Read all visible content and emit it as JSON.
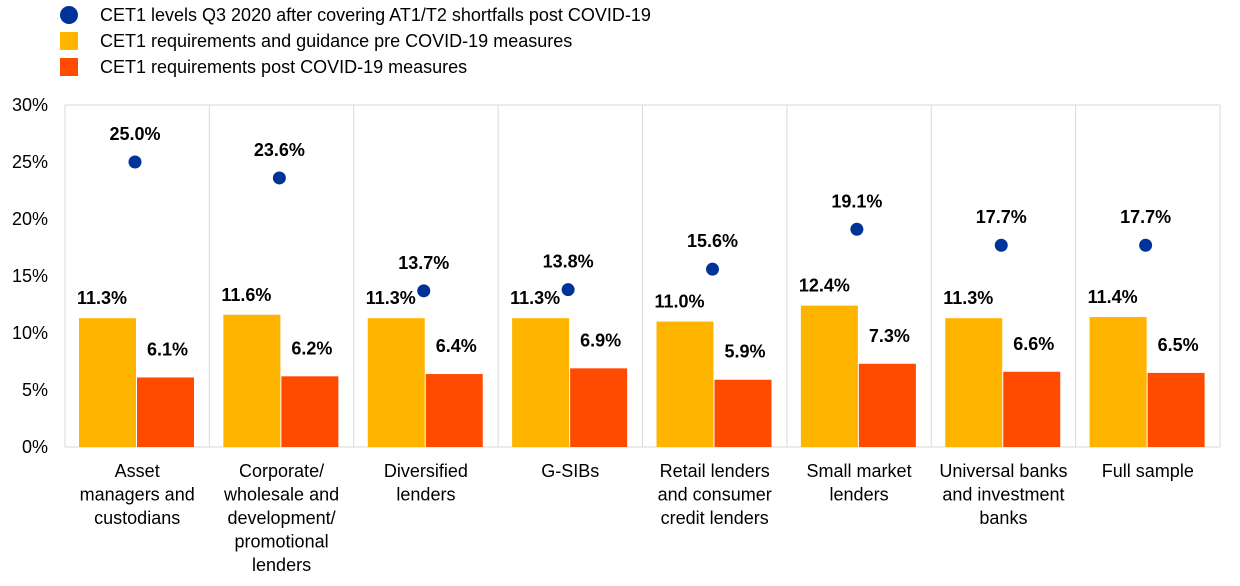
{
  "chart_data": {
    "type": "bar",
    "categories": [
      [
        "Asset",
        "managers and",
        "custodians"
      ],
      [
        "Corporate/",
        "wholesale and",
        "development/",
        "promotional",
        "lenders"
      ],
      [
        "Diversified",
        "lenders"
      ],
      [
        "G-SIBs"
      ],
      [
        "Retail lenders",
        "and consumer",
        "credit lenders"
      ],
      [
        "Small market",
        "lenders"
      ],
      [
        "Universal banks",
        "and investment",
        "banks"
      ],
      [
        "Full sample"
      ]
    ],
    "series": [
      {
        "name": "CET1 levels Q3 2020 after covering AT1/T2 shortfalls post COVID-19",
        "type": "scatter",
        "color": "#003399",
        "values": [
          25.0,
          23.6,
          13.7,
          13.8,
          15.6,
          19.1,
          17.7,
          17.7
        ],
        "labels": [
          "25.0%",
          "23.6%",
          "13.7%",
          "13.8%",
          "15.6%",
          "19.1%",
          "17.7%",
          "17.7%"
        ]
      },
      {
        "name": "CET1 requirements and guidance pre COVID-19 measures",
        "type": "bar",
        "color": "#FFB400",
        "values": [
          11.3,
          11.6,
          11.3,
          11.3,
          11.0,
          12.4,
          11.3,
          11.4
        ],
        "labels": [
          "11.3%",
          "11.6%",
          "11.3%",
          "11.3%",
          "11.0%",
          "12.4%",
          "11.3%",
          "11.4%"
        ]
      },
      {
        "name": "CET1 requirements post COVID-19 measures",
        "type": "bar",
        "color": "#FF4B00",
        "values": [
          6.1,
          6.2,
          6.4,
          6.9,
          5.9,
          7.3,
          6.6,
          6.5
        ],
        "labels": [
          "6.1%",
          "6.2%",
          "6.4%",
          "6.9%",
          "5.9%",
          "7.3%",
          "6.6%",
          "6.5%"
        ]
      }
    ],
    "y_ticks": [
      0,
      5,
      10,
      15,
      20,
      25,
      30
    ],
    "y_tick_labels": [
      "0%",
      "5%",
      "10%",
      "15%",
      "20%",
      "25%",
      "30%"
    ],
    "ylim": [
      0,
      30
    ],
    "grid": "vertical separators between categories",
    "legend_position": "top-left"
  }
}
